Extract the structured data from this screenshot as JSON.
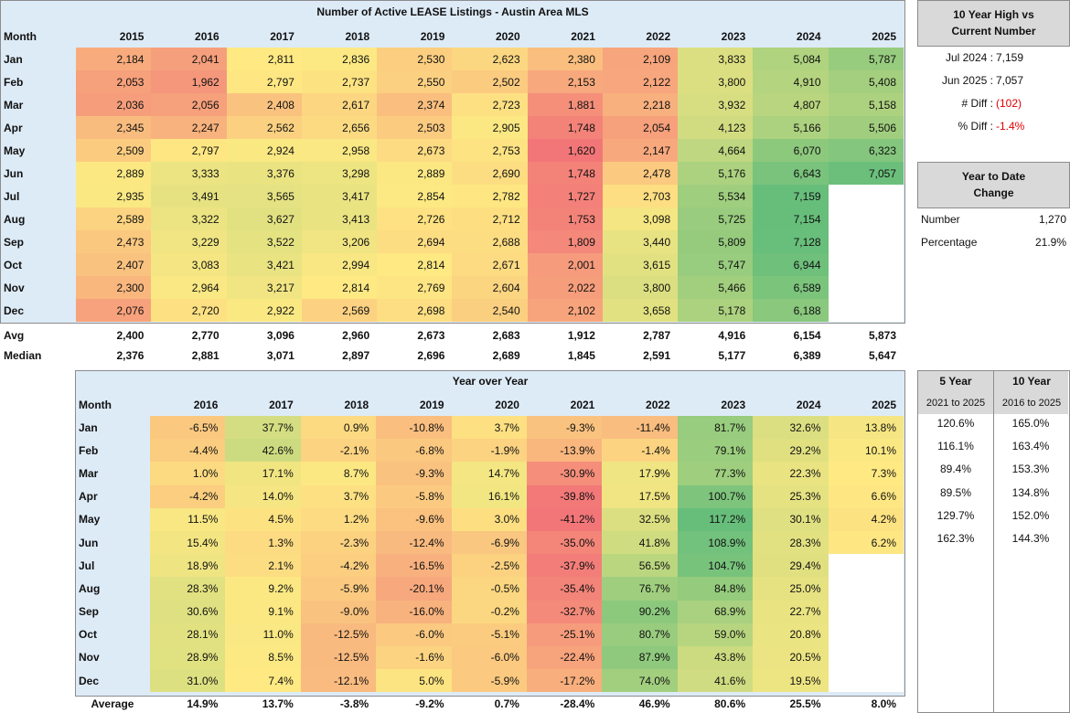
{
  "lease_table": {
    "title": "Number of Active LEASE Listings - Austin Area MLS",
    "month_header": "Month",
    "years": [
      "2015",
      "2016",
      "2017",
      "2018",
      "2019",
      "2020",
      "2021",
      "2022",
      "2023",
      "2024",
      "2025"
    ],
    "rows": [
      {
        "month": "Jan",
        "values": [
          "2,184",
          "2,041",
          "2,811",
          "2,836",
          "2,530",
          "2,623",
          "2,380",
          "2,109",
          "3,833",
          "5,084",
          "5,787"
        ]
      },
      {
        "month": "Feb",
        "values": [
          "2,053",
          "1,962",
          "2,797",
          "2,737",
          "2,550",
          "2,502",
          "2,153",
          "2,122",
          "3,800",
          "4,910",
          "5,408"
        ]
      },
      {
        "month": "Mar",
        "values": [
          "2,036",
          "2,056",
          "2,408",
          "2,617",
          "2,374",
          "2,723",
          "1,881",
          "2,218",
          "3,932",
          "4,807",
          "5,158"
        ]
      },
      {
        "month": "Apr",
        "values": [
          "2,345",
          "2,247",
          "2,562",
          "2,656",
          "2,503",
          "2,905",
          "1,748",
          "2,054",
          "4,123",
          "5,166",
          "5,506"
        ]
      },
      {
        "month": "May",
        "values": [
          "2,509",
          "2,797",
          "2,924",
          "2,958",
          "2,673",
          "2,753",
          "1,620",
          "2,147",
          "4,664",
          "6,070",
          "6,323"
        ]
      },
      {
        "month": "Jun",
        "values": [
          "2,889",
          "3,333",
          "3,376",
          "3,298",
          "2,889",
          "2,690",
          "1,748",
          "2,478",
          "5,176",
          "6,643",
          "7,057"
        ]
      },
      {
        "month": "Jul",
        "values": [
          "2,935",
          "3,491",
          "3,565",
          "3,417",
          "2,854",
          "2,782",
          "1,727",
          "2,703",
          "5,534",
          "7,159",
          ""
        ]
      },
      {
        "month": "Aug",
        "values": [
          "2,589",
          "3,322",
          "3,627",
          "3,413",
          "2,726",
          "2,712",
          "1,753",
          "3,098",
          "5,725",
          "7,154",
          ""
        ]
      },
      {
        "month": "Sep",
        "values": [
          "2,473",
          "3,229",
          "3,522",
          "3,206",
          "2,694",
          "2,688",
          "1,809",
          "3,440",
          "5,809",
          "7,128",
          ""
        ]
      },
      {
        "month": "Oct",
        "values": [
          "2,407",
          "3,083",
          "3,421",
          "2,994",
          "2,814",
          "2,671",
          "2,001",
          "3,615",
          "5,747",
          "6,944",
          ""
        ]
      },
      {
        "month": "Nov",
        "values": [
          "2,300",
          "2,964",
          "3,217",
          "2,814",
          "2,769",
          "2,604",
          "2,022",
          "3,800",
          "5,466",
          "6,589",
          ""
        ]
      },
      {
        "month": "Dec",
        "values": [
          "2,076",
          "2,720",
          "2,922",
          "2,569",
          "2,698",
          "2,540",
          "2,102",
          "3,658",
          "5,178",
          "6,188",
          ""
        ]
      }
    ],
    "avg_label": "Avg",
    "avg": [
      "2,400",
      "2,770",
      "3,096",
      "2,960",
      "2,673",
      "2,683",
      "1,912",
      "2,787",
      "4,916",
      "6,154",
      "5,873"
    ],
    "median_label": "Median",
    "median": [
      "2,376",
      "2,881",
      "3,071",
      "2,897",
      "2,696",
      "2,689",
      "1,845",
      "2,591",
      "5,177",
      "6,389",
      "5,647"
    ]
  },
  "high_box": {
    "title_line1": "10 Year High vs",
    "title_line2": "Current Number",
    "rows": [
      {
        "label": "Jul 2024 :",
        "value": "7,159"
      },
      {
        "label": "Jun 2025 :",
        "value": "7,057"
      },
      {
        "label": "# Diff :",
        "value": "(102)"
      },
      {
        "label": "% Diff :",
        "value": "-1.4%"
      }
    ]
  },
  "ytd_box": {
    "title_line1": "Year to Date",
    "title_line2": "Change",
    "rows": [
      {
        "label": "Number",
        "value": "1,270"
      },
      {
        "label": "Percentage",
        "value": "21.9%"
      }
    ]
  },
  "yoy_table": {
    "title": "Year over Year",
    "month_header": "Month",
    "years": [
      "2016",
      "2017",
      "2018",
      "2019",
      "2020",
      "2021",
      "2022",
      "2023",
      "2024",
      "2025"
    ],
    "rows": [
      {
        "month": "Jan",
        "values": [
          "-6.5%",
          "37.7%",
          "0.9%",
          "-10.8%",
          "3.7%",
          "-9.3%",
          "-11.4%",
          "81.7%",
          "32.6%",
          "13.8%"
        ]
      },
      {
        "month": "Feb",
        "values": [
          "-4.4%",
          "42.6%",
          "-2.1%",
          "-6.8%",
          "-1.9%",
          "-13.9%",
          "-1.4%",
          "79.1%",
          "29.2%",
          "10.1%"
        ]
      },
      {
        "month": "Mar",
        "values": [
          "1.0%",
          "17.1%",
          "8.7%",
          "-9.3%",
          "14.7%",
          "-30.9%",
          "17.9%",
          "77.3%",
          "22.3%",
          "7.3%"
        ]
      },
      {
        "month": "Apr",
        "values": [
          "-4.2%",
          "14.0%",
          "3.7%",
          "-5.8%",
          "16.1%",
          "-39.8%",
          "17.5%",
          "100.7%",
          "25.3%",
          "6.6%"
        ]
      },
      {
        "month": "May",
        "values": [
          "11.5%",
          "4.5%",
          "1.2%",
          "-9.6%",
          "3.0%",
          "-41.2%",
          "32.5%",
          "117.2%",
          "30.1%",
          "4.2%"
        ]
      },
      {
        "month": "Jun",
        "values": [
          "15.4%",
          "1.3%",
          "-2.3%",
          "-12.4%",
          "-6.9%",
          "-35.0%",
          "41.8%",
          "108.9%",
          "28.3%",
          "6.2%"
        ]
      },
      {
        "month": "Jul",
        "values": [
          "18.9%",
          "2.1%",
          "-4.2%",
          "-16.5%",
          "-2.5%",
          "-37.9%",
          "56.5%",
          "104.7%",
          "29.4%",
          ""
        ]
      },
      {
        "month": "Aug",
        "values": [
          "28.3%",
          "9.2%",
          "-5.9%",
          "-20.1%",
          "-0.5%",
          "-35.4%",
          "76.7%",
          "84.8%",
          "25.0%",
          ""
        ]
      },
      {
        "month": "Sep",
        "values": [
          "30.6%",
          "9.1%",
          "-9.0%",
          "-16.0%",
          "-0.2%",
          "-32.7%",
          "90.2%",
          "68.9%",
          "22.7%",
          ""
        ]
      },
      {
        "month": "Oct",
        "values": [
          "28.1%",
          "11.0%",
          "-12.5%",
          "-6.0%",
          "-5.1%",
          "-25.1%",
          "80.7%",
          "59.0%",
          "20.8%",
          ""
        ]
      },
      {
        "month": "Nov",
        "values": [
          "28.9%",
          "8.5%",
          "-12.5%",
          "-1.6%",
          "-6.0%",
          "-22.4%",
          "87.9%",
          "43.8%",
          "20.5%",
          ""
        ]
      },
      {
        "month": "Dec",
        "values": [
          "31.0%",
          "7.4%",
          "-12.1%",
          "5.0%",
          "-5.9%",
          "-17.2%",
          "74.0%",
          "41.6%",
          "19.5%",
          ""
        ]
      }
    ],
    "avg_label": "Average",
    "avg": [
      "14.9%",
      "13.7%",
      "-3.8%",
      "-9.2%",
      "0.7%",
      "-28.4%",
      "46.9%",
      "80.6%",
      "25.5%",
      "8.0%"
    ]
  },
  "growth_table": {
    "col1_title": "5 Year",
    "col1_sub": "2021 to 2025",
    "col2_title": "10 Year",
    "col2_sub": "2016 to 2025",
    "rows": [
      [
        "120.6%",
        "165.0%"
      ],
      [
        "116.1%",
        "163.4%"
      ],
      [
        "89.4%",
        "153.3%"
      ],
      [
        "89.5%",
        "134.8%"
      ],
      [
        "129.7%",
        "152.0%"
      ],
      [
        "162.3%",
        "144.3%"
      ]
    ]
  }
}
